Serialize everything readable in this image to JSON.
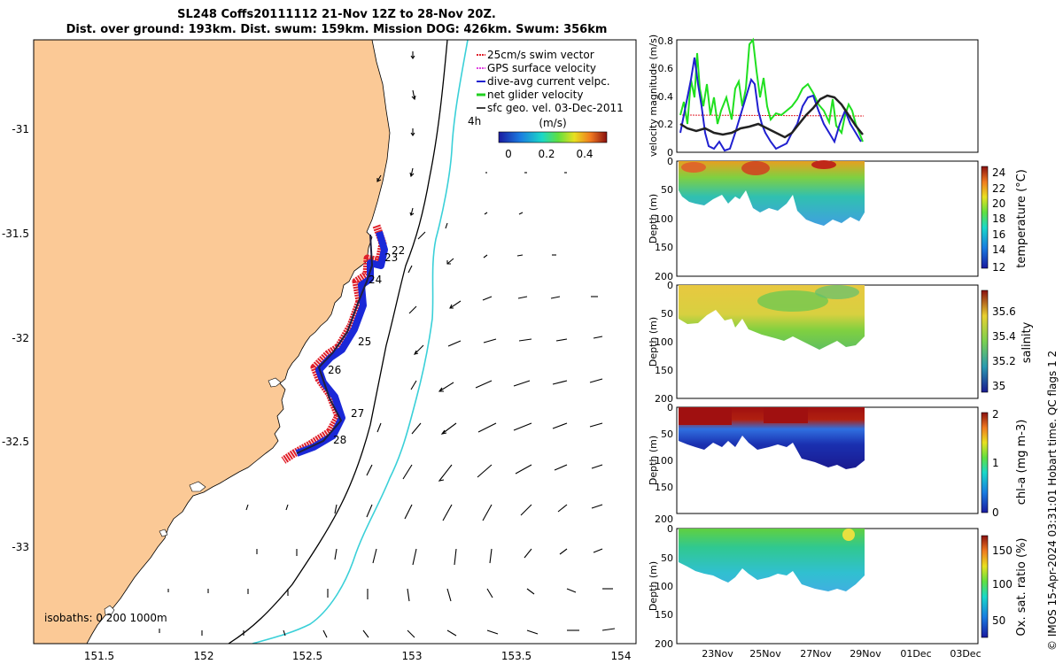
{
  "title": {
    "line1": "SL248 Coffs20111112 21-Nov 12Z to 28-Nov 20Z.",
    "line2": "Dist. over ground: 193km. Dist. swum: 159km. Mission DOG: 426km. Swum: 356km"
  },
  "map": {
    "lon_ticks": [
      "151.5",
      "152",
      "152.5",
      "153",
      "153.5",
      "154"
    ],
    "lat_ticks": [
      "-31",
      "-31.5",
      "-32",
      "-32.5",
      "-33"
    ],
    "legend": [
      {
        "label": "25cm/s swim vector",
        "color": "#e0202a"
      },
      {
        "label": "GPS surface velocity",
        "color": "#e040e0"
      },
      {
        "label": "dive-avg current velpc.",
        "color": "#2020d0"
      },
      {
        "label": "net glider velocity",
        "color": "#20d020"
      },
      {
        "label": "sfc geo. vel. 03-Dec-2011",
        "color": "#000000"
      }
    ],
    "time_label": "4h",
    "colorbar": {
      "label": "(m/s)",
      "ticks": [
        "0",
        "0.2",
        "0.4"
      ]
    },
    "day_labels": [
      "22",
      "23",
      "24",
      "25",
      "26",
      "27",
      "28"
    ],
    "isobath_label": "isobaths: 0  200  1000m",
    "colors": {
      "land": "#fbc996",
      "isobath_200": "#000000",
      "isobath_1000": "#3ad0d8"
    }
  },
  "velocity_plot": {
    "ylabel": "velocity magnitude (m/s)",
    "y_ticks": [
      "0",
      "0.2",
      "0.4",
      "0.6",
      "0.8"
    ],
    "ylim": [
      0,
      0.8
    ]
  },
  "sections": [
    {
      "name": "temperature",
      "cbar_label": "temperature (°C)",
      "cbar_ticks": [
        "24",
        "22",
        "20",
        "18",
        "16",
        "14",
        "12"
      ],
      "ylabel": "Depth (m)",
      "y_ticks": [
        "0",
        "50",
        "100",
        "150",
        "200"
      ]
    },
    {
      "name": "salinity",
      "cbar_label": "salinity",
      "cbar_ticks": [
        "35.6",
        "35.4",
        "35.2",
        "35"
      ],
      "ylabel": "Depth (m)",
      "y_ticks": [
        "0",
        "50",
        "100",
        "150",
        "200"
      ]
    },
    {
      "name": "chl-a",
      "cbar_label": "chl-a (mg m-3)",
      "cbar_ticks": [
        "2",
        "1",
        "0"
      ],
      "ylabel": "Depth (m)",
      "y_ticks": [
        "0",
        "50",
        "100",
        "150",
        "200"
      ]
    },
    {
      "name": "oxygen",
      "cbar_label": "Ox. sat. ratio (%)",
      "cbar_ticks": [
        "150",
        "100",
        "50"
      ],
      "ylabel": "Depth (m)",
      "y_ticks": [
        "0",
        "50",
        "100",
        "150",
        "200"
      ]
    }
  ],
  "time_ticks": [
    "23Nov",
    "25Nov",
    "27Nov",
    "29Nov",
    "01Dec",
    "03Dec"
  ],
  "copyright": "© IMOS 15-Apr-2024 03:31:01 Hobart time. QC flags 1  2"
}
